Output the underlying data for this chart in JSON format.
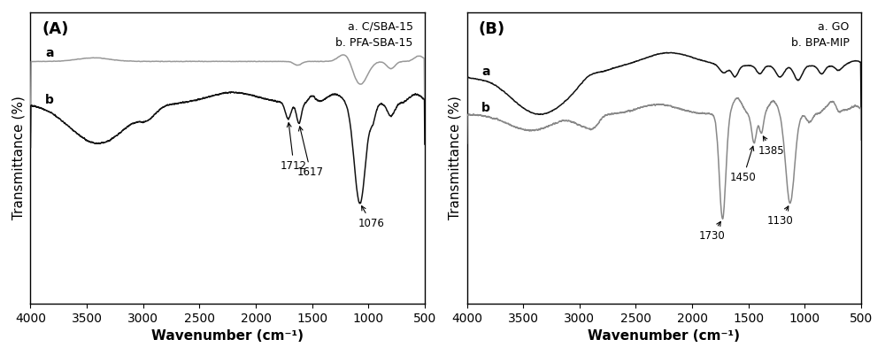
{
  "panel_A": {
    "title": "(A)",
    "legend_a": "a. C/SBA-15",
    "legend_b": "b. PFA-SBA-15",
    "label_a": "a",
    "label_b": "b",
    "xlabel": "Wavenumber (cm⁻¹)",
    "ylabel": "Transmittance (%)",
    "xlim": [
      4000,
      500
    ],
    "color_a": "#999999",
    "color_b": "#111111",
    "ylim": [
      -0.55,
      1.05
    ]
  },
  "panel_B": {
    "title": "(B)",
    "legend_a": "a. GO",
    "legend_b": "b. BPA-MIP",
    "label_a": "a",
    "label_b": "b",
    "xlabel": "Wavenumber (cm⁻¹)",
    "ylabel": "Transmittance (%)",
    "xlim": [
      4000,
      500
    ],
    "color_a": "#111111",
    "color_b": "#888888",
    "ylim": [
      -0.75,
      1.05
    ]
  },
  "background_color": "#ffffff",
  "tick_fontsize": 10,
  "label_fontsize": 11,
  "title_fontsize": 13
}
